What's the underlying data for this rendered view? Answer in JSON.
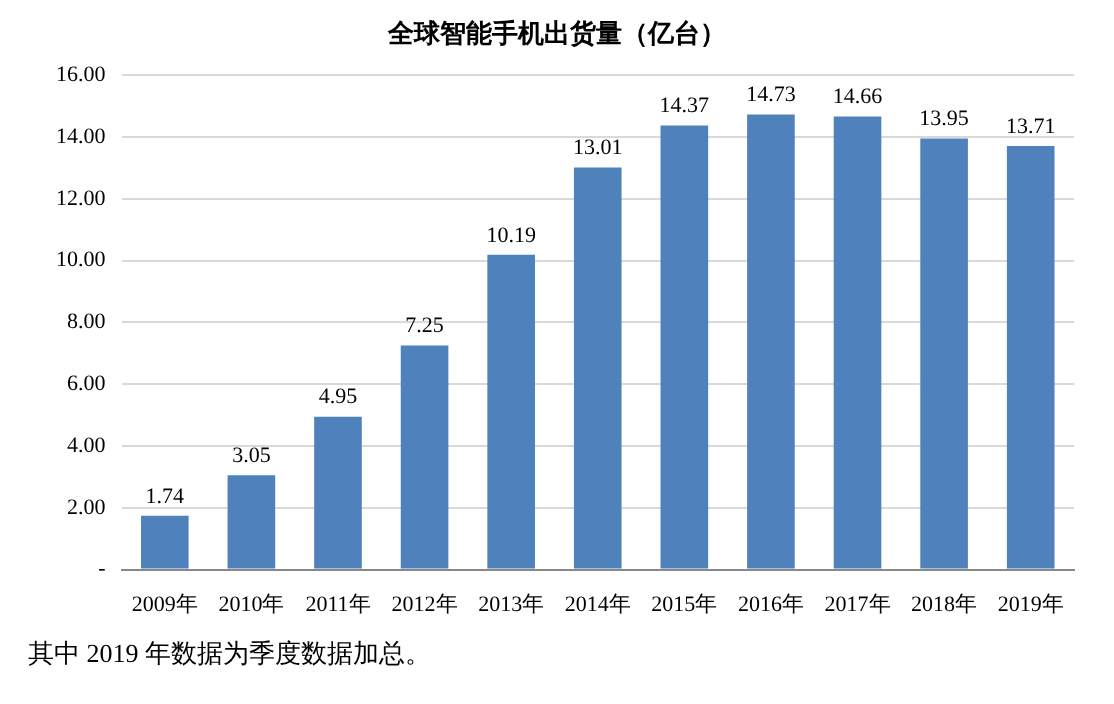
{
  "chart_data": {
    "type": "bar",
    "title": "全球智能手机出货量（亿台）",
    "categories": [
      "2009年",
      "2010年",
      "2011年",
      "2012年",
      "2013年",
      "2014年",
      "2015年",
      "2016年",
      "2017年",
      "2018年",
      "2019年"
    ],
    "values": [
      1.74,
      3.05,
      4.95,
      7.25,
      10.19,
      13.01,
      14.37,
      14.73,
      14.66,
      13.95,
      13.71
    ],
    "color": "#4f81bd",
    "ylim": [
      0,
      16
    ],
    "yticks": [
      {
        "value": 0,
        "label": "-"
      },
      {
        "value": 2,
        "label": "2.00"
      },
      {
        "value": 4,
        "label": "4.00"
      },
      {
        "value": 6,
        "label": "6.00"
      },
      {
        "value": 8,
        "label": "8.00"
      },
      {
        "value": 10,
        "label": "10.00"
      },
      {
        "value": 12,
        "label": "12.00"
      },
      {
        "value": 14,
        "label": "14.00"
      },
      {
        "value": 16,
        "label": "16.00"
      }
    ],
    "grid": "y",
    "data_labels": true,
    "annotations": [
      "其中 2019 年数据为季度数据加总。"
    ]
  }
}
